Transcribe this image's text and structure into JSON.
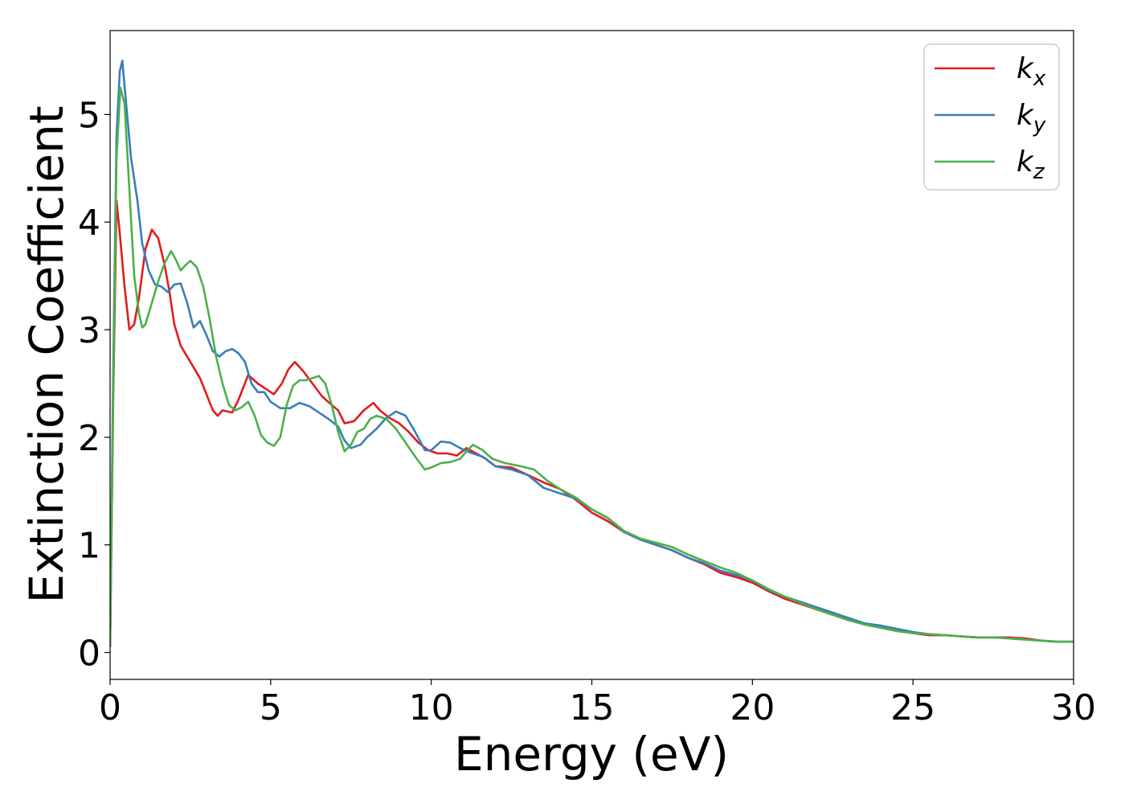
{
  "chart_data": {
    "type": "line",
    "title": "",
    "xlabel": "Energy (eV)",
    "ylabel": "Extinction Coefficient",
    "xlim": [
      0,
      30
    ],
    "ylim": [
      -0.25,
      5.78
    ],
    "xticks": [
      0,
      5,
      10,
      15,
      20,
      25,
      30
    ],
    "yticks": [
      0,
      1,
      2,
      3,
      4,
      5
    ],
    "grid": false,
    "legend_position": "top-right",
    "series": [
      {
        "name": "k_x",
        "legend_main": "k",
        "legend_sub": "x",
        "color": "#e41a1c",
        "points": [
          [
            0,
            0.05
          ],
          [
            0.1,
            2.4
          ],
          [
            0.2,
            4.2
          ],
          [
            0.3,
            3.9
          ],
          [
            0.45,
            3.4
          ],
          [
            0.6,
            3.0
          ],
          [
            0.75,
            3.05
          ],
          [
            0.9,
            3.3
          ],
          [
            1.1,
            3.75
          ],
          [
            1.3,
            3.93
          ],
          [
            1.5,
            3.85
          ],
          [
            1.7,
            3.6
          ],
          [
            1.85,
            3.35
          ],
          [
            2.0,
            3.05
          ],
          [
            2.2,
            2.85
          ],
          [
            2.4,
            2.75
          ],
          [
            2.6,
            2.65
          ],
          [
            2.8,
            2.55
          ],
          [
            3.0,
            2.4
          ],
          [
            3.2,
            2.25
          ],
          [
            3.35,
            2.2
          ],
          [
            3.5,
            2.25
          ],
          [
            3.8,
            2.23
          ],
          [
            4.0,
            2.35
          ],
          [
            4.3,
            2.58
          ],
          [
            4.6,
            2.5
          ],
          [
            4.85,
            2.45
          ],
          [
            5.1,
            2.4
          ],
          [
            5.35,
            2.5
          ],
          [
            5.55,
            2.63
          ],
          [
            5.75,
            2.7
          ],
          [
            6.0,
            2.62
          ],
          [
            6.3,
            2.5
          ],
          [
            6.6,
            2.38
          ],
          [
            6.9,
            2.3
          ],
          [
            7.1,
            2.25
          ],
          [
            7.3,
            2.13
          ],
          [
            7.6,
            2.15
          ],
          [
            7.9,
            2.25
          ],
          [
            8.2,
            2.32
          ],
          [
            8.4,
            2.25
          ],
          [
            8.7,
            2.18
          ],
          [
            9.0,
            2.13
          ],
          [
            9.3,
            2.05
          ],
          [
            9.6,
            1.95
          ],
          [
            9.9,
            1.88
          ],
          [
            10.2,
            1.85
          ],
          [
            10.5,
            1.85
          ],
          [
            10.8,
            1.83
          ],
          [
            11.1,
            1.9
          ],
          [
            11.4,
            1.85
          ],
          [
            11.7,
            1.8
          ],
          [
            12.0,
            1.73
          ],
          [
            12.5,
            1.72
          ],
          [
            13.0,
            1.65
          ],
          [
            13.5,
            1.58
          ],
          [
            14.0,
            1.52
          ],
          [
            14.5,
            1.42
          ],
          [
            15.0,
            1.3
          ],
          [
            15.5,
            1.22
          ],
          [
            16.0,
            1.12
          ],
          [
            16.5,
            1.05
          ],
          [
            17.0,
            1.0
          ],
          [
            17.5,
            0.95
          ],
          [
            18.0,
            0.88
          ],
          [
            18.5,
            0.82
          ],
          [
            19.0,
            0.74
          ],
          [
            19.5,
            0.7
          ],
          [
            20.0,
            0.65
          ],
          [
            20.5,
            0.57
          ],
          [
            21.0,
            0.5
          ],
          [
            21.5,
            0.45
          ],
          [
            22.0,
            0.4
          ],
          [
            22.5,
            0.35
          ],
          [
            23.0,
            0.3
          ],
          [
            23.5,
            0.26
          ],
          [
            24.0,
            0.23
          ],
          [
            24.5,
            0.2
          ],
          [
            25.0,
            0.18
          ],
          [
            25.5,
            0.16
          ],
          [
            26.0,
            0.16
          ],
          [
            26.5,
            0.15
          ],
          [
            27.0,
            0.14
          ],
          [
            27.5,
            0.14
          ],
          [
            28.0,
            0.14
          ],
          [
            28.5,
            0.13
          ],
          [
            29.0,
            0.11
          ],
          [
            29.5,
            0.1
          ],
          [
            30.0,
            0.1
          ]
        ]
      },
      {
        "name": "k_y",
        "legend_main": "k",
        "legend_sub": "y",
        "color": "#377eb8",
        "points": [
          [
            0,
            0.05
          ],
          [
            0.1,
            2.7
          ],
          [
            0.2,
            4.8
          ],
          [
            0.3,
            5.4
          ],
          [
            0.38,
            5.5
          ],
          [
            0.5,
            5.1
          ],
          [
            0.65,
            4.6
          ],
          [
            0.85,
            4.2
          ],
          [
            1.0,
            3.8
          ],
          [
            1.2,
            3.55
          ],
          [
            1.4,
            3.42
          ],
          [
            1.6,
            3.4
          ],
          [
            1.8,
            3.35
          ],
          [
            2.0,
            3.42
          ],
          [
            2.2,
            3.43
          ],
          [
            2.4,
            3.25
          ],
          [
            2.6,
            3.02
          ],
          [
            2.8,
            3.08
          ],
          [
            3.0,
            2.95
          ],
          [
            3.2,
            2.8
          ],
          [
            3.4,
            2.75
          ],
          [
            3.6,
            2.8
          ],
          [
            3.8,
            2.82
          ],
          [
            4.0,
            2.78
          ],
          [
            4.2,
            2.7
          ],
          [
            4.4,
            2.5
          ],
          [
            4.6,
            2.42
          ],
          [
            4.8,
            2.42
          ],
          [
            5.0,
            2.33
          ],
          [
            5.3,
            2.27
          ],
          [
            5.6,
            2.27
          ],
          [
            5.9,
            2.32
          ],
          [
            6.2,
            2.29
          ],
          [
            6.5,
            2.23
          ],
          [
            6.8,
            2.17
          ],
          [
            7.1,
            2.1
          ],
          [
            7.3,
            1.97
          ],
          [
            7.5,
            1.9
          ],
          [
            7.8,
            1.93
          ],
          [
            8.0,
            2.0
          ],
          [
            8.3,
            2.08
          ],
          [
            8.6,
            2.18
          ],
          [
            8.9,
            2.24
          ],
          [
            9.2,
            2.2
          ],
          [
            9.5,
            2.05
          ],
          [
            9.8,
            1.88
          ],
          [
            10.0,
            1.88
          ],
          [
            10.3,
            1.96
          ],
          [
            10.6,
            1.95
          ],
          [
            10.9,
            1.9
          ],
          [
            11.2,
            1.86
          ],
          [
            11.6,
            1.82
          ],
          [
            12.0,
            1.73
          ],
          [
            12.5,
            1.7
          ],
          [
            13.0,
            1.65
          ],
          [
            13.5,
            1.53
          ],
          [
            14.0,
            1.48
          ],
          [
            14.5,
            1.43
          ],
          [
            15.0,
            1.33
          ],
          [
            15.5,
            1.25
          ],
          [
            16.0,
            1.12
          ],
          [
            16.5,
            1.05
          ],
          [
            17.0,
            1.0
          ],
          [
            17.5,
            0.95
          ],
          [
            18.0,
            0.88
          ],
          [
            18.5,
            0.83
          ],
          [
            19.0,
            0.76
          ],
          [
            19.5,
            0.72
          ],
          [
            20.0,
            0.67
          ],
          [
            20.5,
            0.58
          ],
          [
            21.0,
            0.52
          ],
          [
            21.5,
            0.47
          ],
          [
            22.0,
            0.42
          ],
          [
            22.5,
            0.37
          ],
          [
            23.0,
            0.32
          ],
          [
            23.5,
            0.27
          ],
          [
            24.0,
            0.25
          ],
          [
            24.5,
            0.22
          ],
          [
            25.0,
            0.19
          ],
          [
            25.5,
            0.17
          ],
          [
            26.0,
            0.16
          ],
          [
            26.5,
            0.15
          ],
          [
            27.0,
            0.14
          ],
          [
            27.5,
            0.14
          ],
          [
            28.0,
            0.13
          ],
          [
            28.5,
            0.12
          ],
          [
            29.0,
            0.11
          ],
          [
            29.5,
            0.1
          ],
          [
            30.0,
            0.1
          ]
        ]
      },
      {
        "name": "k_z",
        "legend_main": "k",
        "legend_sub": "z",
        "color": "#4daf4a",
        "points": [
          [
            0,
            0.05
          ],
          [
            0.1,
            2.5
          ],
          [
            0.2,
            4.6
          ],
          [
            0.32,
            5.25
          ],
          [
            0.45,
            5.1
          ],
          [
            0.6,
            4.3
          ],
          [
            0.75,
            3.5
          ],
          [
            0.9,
            3.15
          ],
          [
            1.0,
            3.02
          ],
          [
            1.1,
            3.05
          ],
          [
            1.3,
            3.25
          ],
          [
            1.5,
            3.45
          ],
          [
            1.7,
            3.62
          ],
          [
            1.9,
            3.73
          ],
          [
            2.05,
            3.65
          ],
          [
            2.2,
            3.55
          ],
          [
            2.35,
            3.6
          ],
          [
            2.5,
            3.64
          ],
          [
            2.7,
            3.58
          ],
          [
            2.9,
            3.4
          ],
          [
            3.1,
            3.1
          ],
          [
            3.3,
            2.75
          ],
          [
            3.5,
            2.5
          ],
          [
            3.7,
            2.3
          ],
          [
            3.9,
            2.25
          ],
          [
            4.1,
            2.28
          ],
          [
            4.3,
            2.33
          ],
          [
            4.5,
            2.2
          ],
          [
            4.7,
            2.02
          ],
          [
            4.9,
            1.95
          ],
          [
            5.1,
            1.92
          ],
          [
            5.3,
            2.0
          ],
          [
            5.5,
            2.3
          ],
          [
            5.7,
            2.48
          ],
          [
            5.9,
            2.53
          ],
          [
            6.1,
            2.53
          ],
          [
            6.3,
            2.55
          ],
          [
            6.5,
            2.57
          ],
          [
            6.7,
            2.5
          ],
          [
            6.9,
            2.3
          ],
          [
            7.1,
            2.05
          ],
          [
            7.3,
            1.87
          ],
          [
            7.5,
            1.93
          ],
          [
            7.7,
            2.05
          ],
          [
            7.9,
            2.08
          ],
          [
            8.1,
            2.17
          ],
          [
            8.3,
            2.2
          ],
          [
            8.6,
            2.17
          ],
          [
            8.9,
            2.08
          ],
          [
            9.2,
            1.95
          ],
          [
            9.5,
            1.82
          ],
          [
            9.8,
            1.7
          ],
          [
            10.0,
            1.72
          ],
          [
            10.3,
            1.76
          ],
          [
            10.6,
            1.77
          ],
          [
            10.9,
            1.8
          ],
          [
            11.1,
            1.87
          ],
          [
            11.3,
            1.93
          ],
          [
            11.6,
            1.88
          ],
          [
            11.9,
            1.8
          ],
          [
            12.3,
            1.76
          ],
          [
            12.8,
            1.73
          ],
          [
            13.2,
            1.7
          ],
          [
            13.6,
            1.6
          ],
          [
            14.0,
            1.52
          ],
          [
            14.5,
            1.44
          ],
          [
            15.0,
            1.33
          ],
          [
            15.5,
            1.25
          ],
          [
            16.0,
            1.13
          ],
          [
            16.5,
            1.06
          ],
          [
            17.0,
            1.02
          ],
          [
            17.5,
            0.98
          ],
          [
            18.0,
            0.91
          ],
          [
            18.5,
            0.85
          ],
          [
            19.0,
            0.79
          ],
          [
            19.5,
            0.74
          ],
          [
            20.0,
            0.67
          ],
          [
            20.5,
            0.59
          ],
          [
            21.0,
            0.52
          ],
          [
            21.5,
            0.46
          ],
          [
            22.0,
            0.4
          ],
          [
            22.5,
            0.35
          ],
          [
            23.0,
            0.3
          ],
          [
            23.5,
            0.26
          ],
          [
            24.0,
            0.23
          ],
          [
            24.5,
            0.2
          ],
          [
            25.0,
            0.18
          ],
          [
            25.5,
            0.17
          ],
          [
            26.0,
            0.16
          ],
          [
            26.5,
            0.15
          ],
          [
            27.0,
            0.14
          ],
          [
            27.5,
            0.14
          ],
          [
            28.0,
            0.13
          ],
          [
            28.5,
            0.12
          ],
          [
            29.0,
            0.11
          ],
          [
            29.5,
            0.1
          ],
          [
            30.0,
            0.1
          ]
        ]
      }
    ]
  }
}
